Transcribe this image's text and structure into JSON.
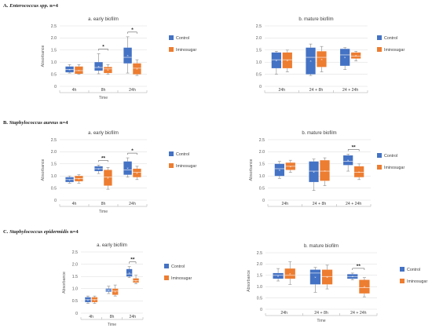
{
  "colors": {
    "control": "#4472C4",
    "iminosugar": "#ED7D31"
  },
  "sections": [
    {
      "prefix": "A. ",
      "organism": "Enterococcus spp.",
      "suffix": " n=4"
    },
    {
      "prefix": "B. ",
      "organism": "Staphylococcus aureus",
      "suffix": " n=4"
    },
    {
      "prefix": "C. ",
      "organism": "Staphylococcus epidermidis",
      "suffix": " n=4"
    }
  ],
  "chart_data": [
    {
      "type": "box",
      "section": 0,
      "title": "a. early biofilm",
      "ylabel": "Absorbance",
      "xlabel": "Time",
      "ylim": [
        0,
        2.5
      ],
      "yticks": [
        "0",
        "0.5",
        "1.0",
        "1.5",
        "2.0",
        "2.5"
      ],
      "categories": [
        "4h",
        "8h",
        "24h"
      ],
      "significance": [
        null,
        "*",
        "*"
      ],
      "series": [
        {
          "name": "Control",
          "boxes": [
            {
              "min": 0.55,
              "q1": 0.58,
              "median": 0.7,
              "q3": 0.82,
              "max": 0.9
            },
            {
              "min": 0.52,
              "q1": 0.65,
              "median": 0.78,
              "q3": 1.0,
              "max": 1.35
            },
            {
              "min": 0.55,
              "q1": 0.95,
              "median": 1.2,
              "q3": 1.6,
              "max": 2.05
            }
          ]
        },
        {
          "name": "Iminosugar",
          "boxes": [
            {
              "min": 0.5,
              "q1": 0.52,
              "median": 0.65,
              "q3": 0.82,
              "max": 0.9
            },
            {
              "min": 0.5,
              "q1": 0.55,
              "median": 0.72,
              "q3": 0.8,
              "max": 0.9
            },
            {
              "min": 0.45,
              "q1": 0.5,
              "median": 0.75,
              "q3": 0.95,
              "max": 1.1
            }
          ]
        }
      ]
    },
    {
      "type": "box",
      "section": 0,
      "title": "b. mature biofilm",
      "ylabel": "",
      "xlabel": "",
      "ylim": [
        0,
        2.5
      ],
      "yticks": [
        "0",
        "0.5",
        "1.0",
        "1.5",
        "2.0",
        "2.5"
      ],
      "categories": [
        "24h",
        "24 + 8h",
        "24 + 24h"
      ],
      "significance": [
        null,
        null,
        null
      ],
      "series": [
        {
          "name": "Control",
          "boxes": [
            {
              "min": 0.5,
              "q1": 0.75,
              "median": 1.1,
              "q3": 1.4,
              "max": 1.45
            },
            {
              "min": 0.45,
              "q1": 0.5,
              "median": 1.2,
              "q3": 1.6,
              "max": 1.75
            },
            {
              "min": 0.7,
              "q1": 0.85,
              "median": 1.3,
              "q3": 1.55,
              "max": 1.6
            }
          ]
        },
        {
          "name": "Iminosugar",
          "boxes": [
            {
              "min": 0.6,
              "q1": 0.75,
              "median": 1.1,
              "q3": 1.4,
              "max": 1.5
            },
            {
              "min": 0.6,
              "q1": 0.8,
              "median": 1.2,
              "q3": 1.45,
              "max": 1.65
            },
            {
              "min": 1.05,
              "q1": 1.15,
              "median": 1.25,
              "q3": 1.4,
              "max": 1.45
            }
          ]
        }
      ]
    },
    {
      "type": "box",
      "section": 1,
      "title": "a. early biofilm",
      "ylabel": "Absorbance",
      "xlabel": "Time",
      "ylim": [
        0,
        2.5
      ],
      "yticks": [
        "0",
        "0.5",
        "1.0",
        "1.5",
        "2.0",
        "2.5"
      ],
      "categories": [
        "4h",
        "8h",
        "24h"
      ],
      "significance": [
        null,
        "**",
        "*"
      ],
      "series": [
        {
          "name": "Control",
          "boxes": [
            {
              "min": 0.7,
              "q1": 0.75,
              "median": 0.85,
              "q3": 0.95,
              "max": 1.0
            },
            {
              "min": 1.1,
              "q1": 1.2,
              "median": 1.3,
              "q3": 1.4,
              "max": 1.45
            },
            {
              "min": 0.95,
              "q1": 1.05,
              "median": 1.25,
              "q3": 1.6,
              "max": 1.75
            }
          ]
        },
        {
          "name": "Iminosugar",
          "boxes": [
            {
              "min": 0.7,
              "q1": 0.78,
              "median": 0.9,
              "q3": 1.0,
              "max": 1.05
            },
            {
              "min": 0.45,
              "q1": 0.6,
              "median": 0.95,
              "q3": 1.25,
              "max": 1.35
            },
            {
              "min": 0.85,
              "q1": 0.95,
              "median": 1.15,
              "q3": 1.3,
              "max": 1.4
            }
          ]
        }
      ]
    },
    {
      "type": "box",
      "section": 1,
      "title": "b. mature biofilm",
      "ylabel": "Absorbance",
      "xlabel": "",
      "ylim": [
        0,
        2.5
      ],
      "yticks": [
        "0",
        "0.5",
        "1.0",
        "1.5",
        "2.0",
        "2.5"
      ],
      "categories": [
        "24h",
        "24 + 8h",
        "24 + 24h"
      ],
      "significance": [
        null,
        null,
        "**"
      ],
      "series": [
        {
          "name": "Control",
          "boxes": [
            {
              "min": 0.9,
              "q1": 1.0,
              "median": 1.3,
              "q3": 1.5,
              "max": 1.6
            },
            {
              "min": 0.4,
              "q1": 0.75,
              "median": 1.2,
              "q3": 1.6,
              "max": 1.7
            },
            {
              "min": 1.2,
              "q1": 1.45,
              "median": 1.6,
              "q3": 1.85,
              "max": 1.9
            }
          ]
        },
        {
          "name": "Iminosugar",
          "boxes": [
            {
              "min": 1.15,
              "q1": 1.25,
              "median": 1.4,
              "q3": 1.55,
              "max": 1.65
            },
            {
              "min": 0.6,
              "q1": 0.8,
              "median": 1.2,
              "q3": 1.65,
              "max": 1.75
            },
            {
              "min": 0.85,
              "q1": 0.95,
              "median": 1.15,
              "q3": 1.4,
              "max": 1.5
            }
          ]
        }
      ]
    },
    {
      "type": "box",
      "section": 2,
      "title": "a. early biofilm",
      "ylabel": "Absorbance",
      "xlabel": "Time",
      "ylim": [
        0,
        2.5
      ],
      "yticks": [
        "0",
        "0.5",
        "1.0",
        "1.5",
        "2.0",
        "2.5"
      ],
      "categories": [
        "4h",
        "8h",
        "24h"
      ],
      "significance": [
        null,
        null,
        "**"
      ],
      "series": [
        {
          "name": "Control",
          "boxes": [
            {
              "min": 0.4,
              "q1": 0.45,
              "median": 0.55,
              "q3": 0.65,
              "max": 0.7
            },
            {
              "min": 0.8,
              "q1": 0.88,
              "median": 0.95,
              "q3": 1.0,
              "max": 1.1
            },
            {
              "min": 1.45,
              "q1": 1.5,
              "median": 1.6,
              "q3": 1.8,
              "max": 1.9
            }
          ]
        },
        {
          "name": "Iminosugar",
          "boxes": [
            {
              "min": 0.4,
              "q1": 0.45,
              "median": 0.55,
              "q3": 0.65,
              "max": 0.7
            },
            {
              "min": 0.7,
              "q1": 0.75,
              "median": 0.9,
              "q3": 1.0,
              "max": 1.15
            },
            {
              "min": 1.2,
              "q1": 1.25,
              "median": 1.32,
              "q3": 1.42,
              "max": 1.55
            }
          ]
        }
      ]
    },
    {
      "type": "box",
      "section": 2,
      "title": "b. mature biofilm",
      "ylabel": "Absorbance",
      "xlabel": "Time",
      "ylim": [
        0,
        2.5
      ],
      "yticks": [
        "0",
        "0.5",
        "1.0",
        "1.5",
        "2.0",
        "2.5"
      ],
      "categories": [
        "24h",
        "24 + 8h",
        "24 + 24h"
      ],
      "significance": [
        null,
        null,
        "**"
      ],
      "series": [
        {
          "name": "Control",
          "boxes": [
            {
              "min": 1.25,
              "q1": 1.35,
              "median": 1.5,
              "q3": 1.6,
              "max": 1.8
            },
            {
              "min": 0.75,
              "q1": 1.1,
              "median": 1.6,
              "q3": 1.75,
              "max": 1.85
            },
            {
              "min": 1.3,
              "q1": 1.35,
              "median": 1.45,
              "q3": 1.55,
              "max": 1.6
            }
          ]
        },
        {
          "name": "Iminosugar",
          "boxes": [
            {
              "min": 1.1,
              "q1": 1.35,
              "median": 1.5,
              "q3": 1.8,
              "max": 2.1
            },
            {
              "min": 0.9,
              "q1": 1.1,
              "median": 1.45,
              "q3": 1.75,
              "max": 1.95
            },
            {
              "min": 0.55,
              "q1": 0.7,
              "median": 0.95,
              "q3": 1.3,
              "max": 1.4
            }
          ]
        }
      ]
    }
  ]
}
